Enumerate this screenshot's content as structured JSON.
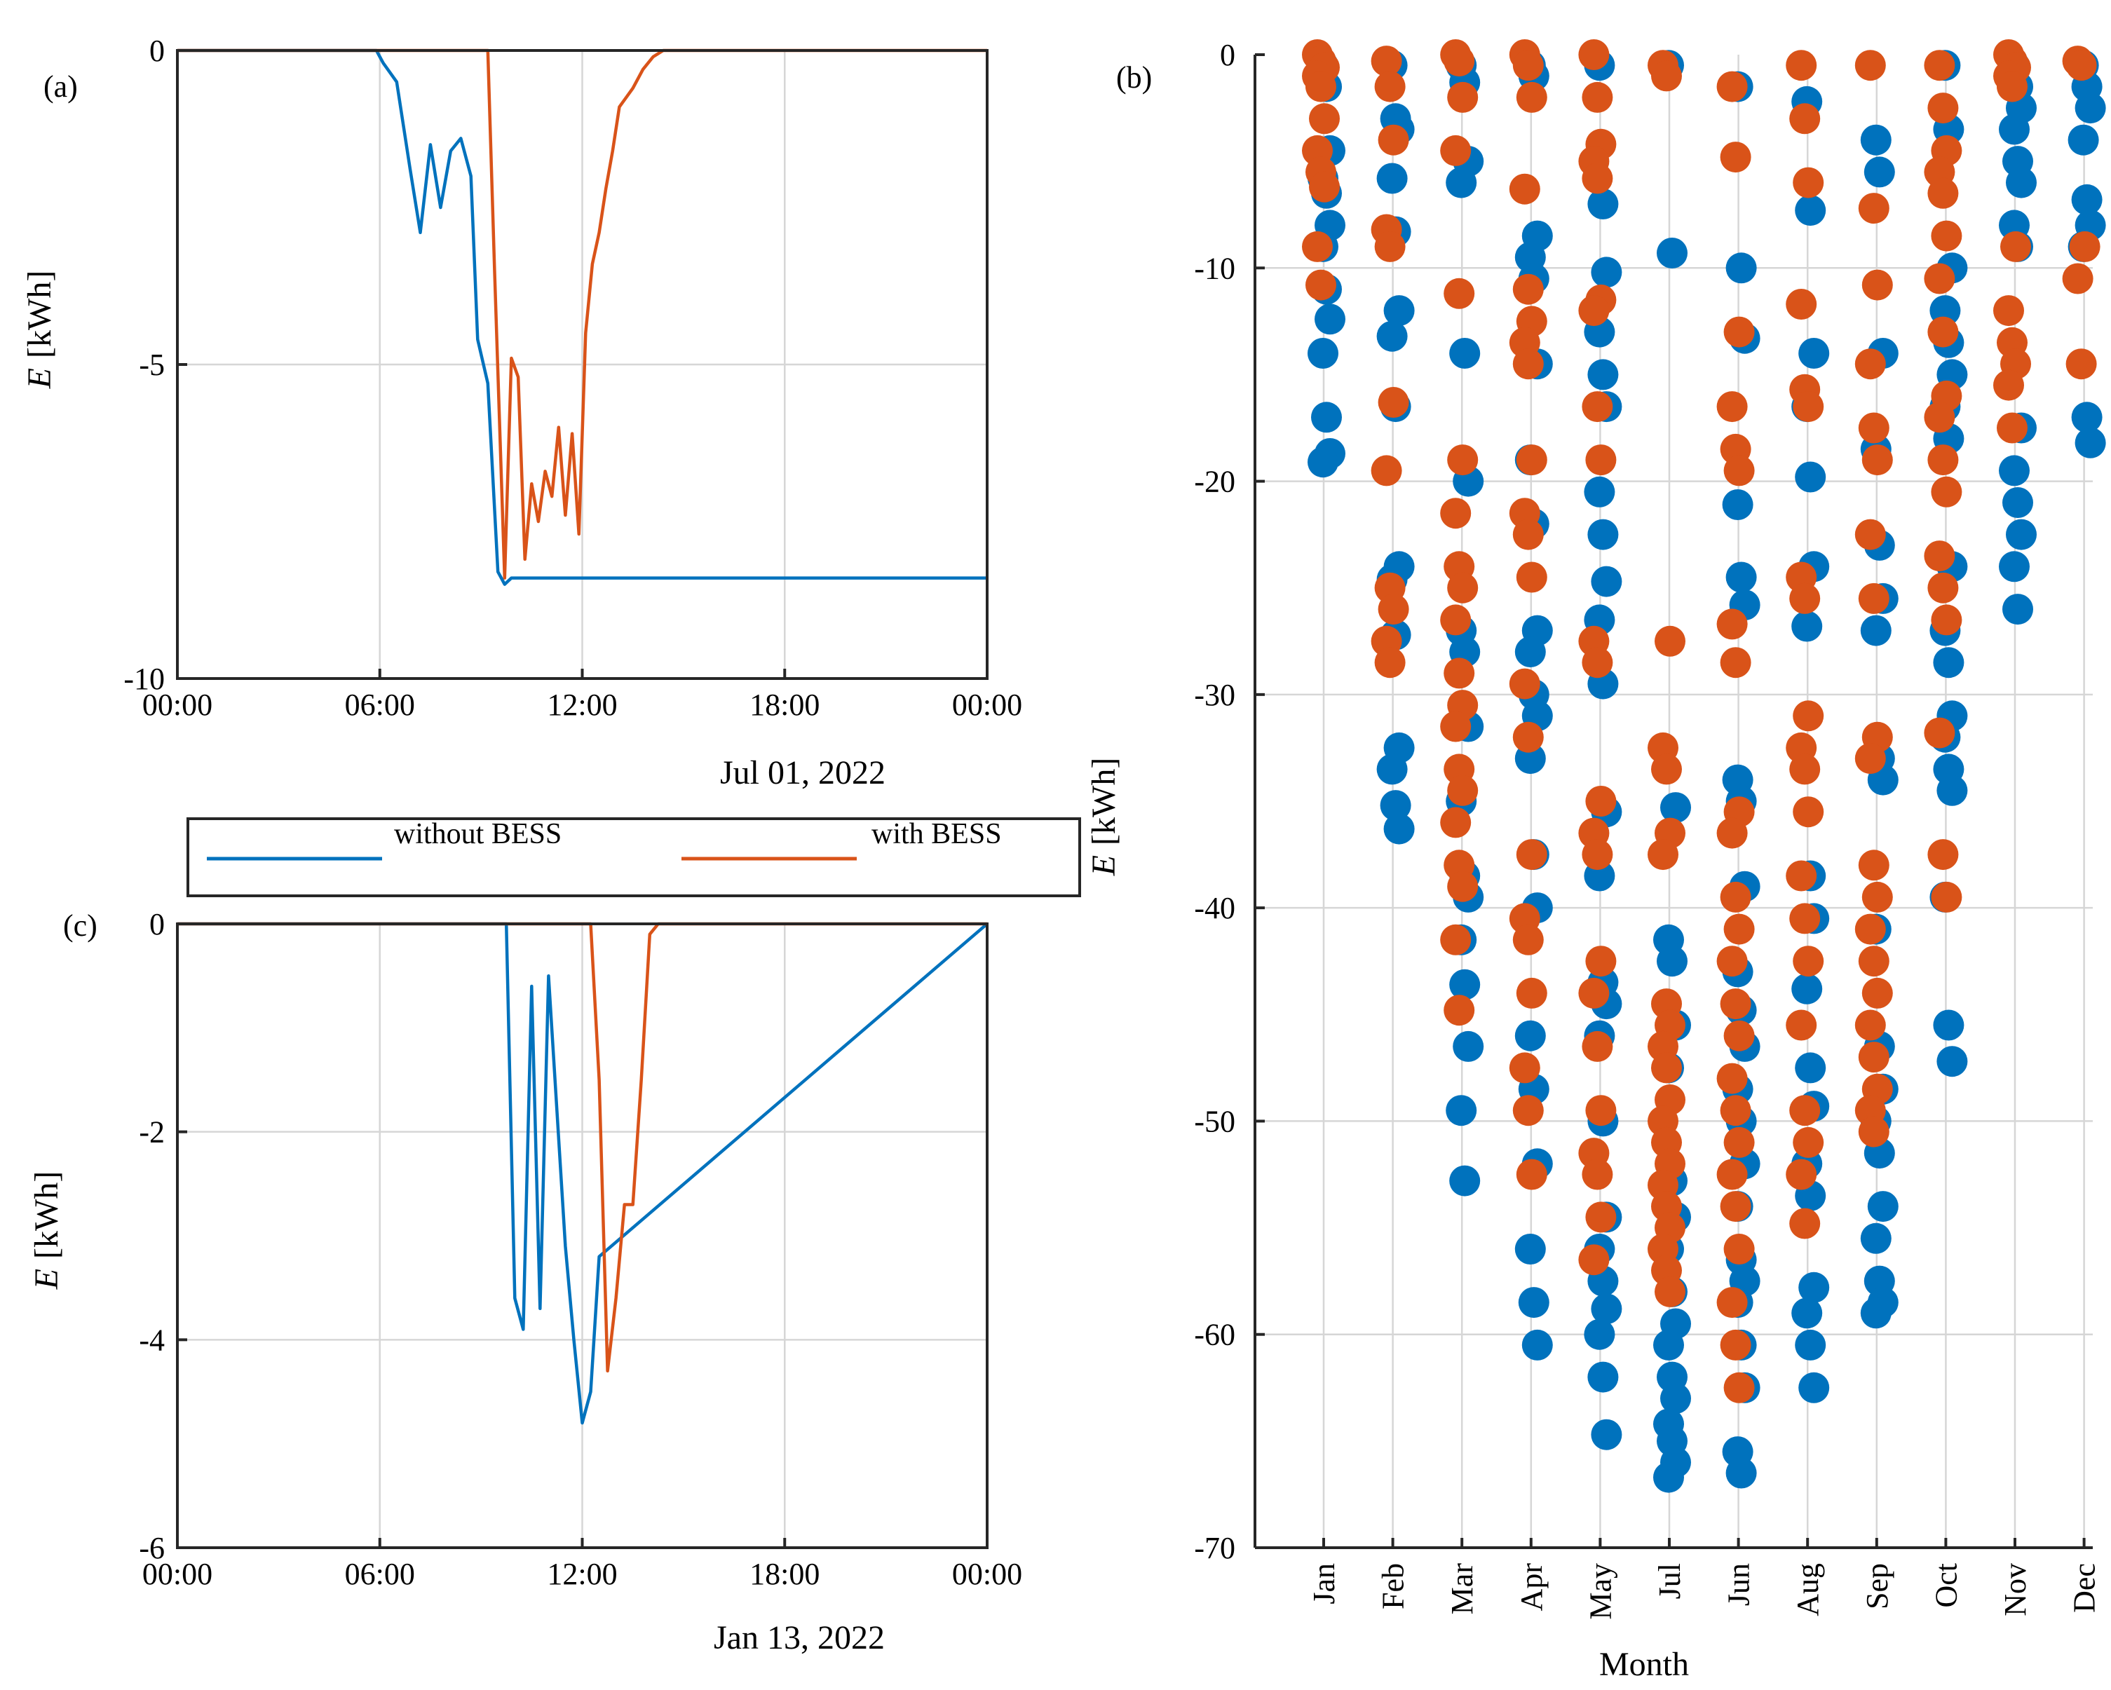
{
  "figure": {
    "series_names": [
      "without BESS",
      "with BESS"
    ],
    "colors": {
      "without": "#0072BD",
      "with": "#D95319"
    }
  },
  "chart_data": [
    {
      "id": "a",
      "type": "line",
      "panel_label": "(a)",
      "date_label": "Jul 01, 2022",
      "ylabel_symbol": "E",
      "ylabel_unit": "[kWh]",
      "xlim": [
        0,
        24
      ],
      "ylim": [
        -10,
        0
      ],
      "yticks": [
        0,
        -5,
        -10
      ],
      "ytick_labels": [
        "0",
        "-5",
        "-10"
      ],
      "xticks": [
        0,
        6,
        12,
        18,
        24
      ],
      "xtick_labels": [
        "00:00",
        "06:00",
        "12:00",
        "18:00",
        "00:00"
      ],
      "series": [
        {
          "name": "without BESS",
          "x": [
            0,
            5.9,
            6.1,
            6.5,
            6.9,
            7.2,
            7.5,
            7.8,
            8.1,
            8.4,
            8.7,
            8.9,
            9.2,
            9.5,
            9.7,
            9.9,
            24
          ],
          "y": [
            0,
            0,
            -0.2,
            -0.5,
            -1.9,
            -2.9,
            -1.5,
            -2.5,
            -1.6,
            -1.4,
            -2.0,
            -4.6,
            -5.3,
            -8.3,
            -8.5,
            -8.4,
            -8.4
          ]
        },
        {
          "name": "with BESS",
          "x": [
            0,
            9.2,
            9.4,
            9.7,
            9.9,
            10.1,
            10.3,
            10.5,
            10.7,
            10.9,
            11.1,
            11.3,
            11.5,
            11.7,
            11.9,
            12.1,
            12.3,
            12.5,
            12.7,
            12.9,
            13.1,
            13.5,
            13.8,
            14.1,
            14.4,
            14.6,
            24
          ],
          "y": [
            0,
            0,
            -3.5,
            -8.4,
            -4.9,
            -5.2,
            -8.1,
            -6.9,
            -7.5,
            -6.7,
            -7.1,
            -6.0,
            -7.4,
            -6.1,
            -7.7,
            -4.5,
            -3.4,
            -2.9,
            -2.2,
            -1.6,
            -0.9,
            -0.6,
            -0.3,
            -0.1,
            0,
            0,
            0
          ]
        }
      ]
    },
    {
      "id": "c",
      "type": "line",
      "panel_label": "(c)",
      "date_label": "Jan 13, 2022",
      "ylabel_symbol": "E",
      "ylabel_unit": "[kWh]",
      "xlim": [
        0,
        24
      ],
      "ylim": [
        -6,
        0
      ],
      "yticks": [
        0,
        -2,
        -4,
        -6
      ],
      "ytick_labels": [
        "0",
        "-2",
        "-4",
        "-6"
      ],
      "xticks": [
        0,
        6,
        12,
        18,
        24
      ],
      "xtick_labels": [
        "00:00",
        "06:00",
        "12:00",
        "18:00",
        "00:00"
      ],
      "series": [
        {
          "name": "without BESS",
          "x": [
            0,
            9.75,
            10.0,
            10.25,
            10.5,
            10.75,
            11.0,
            11.25,
            11.5,
            11.75,
            12.0,
            12.25,
            12.5,
            24
          ],
          "y": [
            0,
            0,
            -3.6,
            -3.9,
            -0.6,
            -3.7,
            -0.5,
            -1.8,
            -3.1,
            -4.0,
            -4.8,
            -4.5,
            -3.2,
            0
          ]
        },
        {
          "name": "with BESS",
          "x": [
            0,
            12.25,
            12.5,
            12.75,
            13.0,
            13.25,
            13.5,
            13.75,
            14.0,
            14.25,
            14.5,
            24
          ],
          "y": [
            0,
            0,
            -1.5,
            -4.3,
            -3.6,
            -2.7,
            -2.7,
            -1.5,
            -0.1,
            0,
            0,
            0
          ]
        }
      ]
    },
    {
      "id": "b",
      "type": "scatter",
      "panel_label": "(b)",
      "xlabel": "Month",
      "ylabel_symbol": "E",
      "ylabel_unit": "[kWh]",
      "ylim": [
        -70,
        0
      ],
      "yticks": [
        0,
        -10,
        -20,
        -30,
        -40,
        -50,
        -60,
        -70
      ],
      "ytick_labels": [
        "0",
        "-10",
        "-20",
        "-30",
        "-40",
        "-50",
        "-60",
        "-70"
      ],
      "categories": [
        "Jan",
        "Feb",
        "Mar",
        "Apr",
        "May",
        "Jul",
        "Jun",
        "Aug",
        "Sep",
        "Oct",
        "Nov",
        "Dec"
      ],
      "series": [
        {
          "name": "without BESS",
          "values": [
            [
              -0.5,
              -1.5,
              -4.5,
              -5.8,
              -6.5,
              -8.0,
              -9.0,
              -11.0,
              -12.4,
              -14.0,
              -17.0,
              -18.7,
              -19.1
            ],
            [
              -0.5,
              -3.0,
              -3.5,
              -5.8,
              -8.3,
              -12.0,
              -13.2,
              -16.5,
              -24.0,
              -24.6,
              -27.2,
              -32.5,
              -33.5,
              -35.2,
              -36.3
            ],
            [
              -0.5,
              -1.3,
              -5.0,
              -6.0,
              -14.0,
              -20.0,
              -27.0,
              -28.0,
              -31.5,
              -35.0,
              -38.5,
              -39.5,
              -41.5,
              -43.6,
              -46.5,
              -49.5,
              -52.8
            ],
            [
              -0.5,
              -1.0,
              -8.5,
              -9.5,
              -10.5,
              -14.5,
              -19.0,
              -22.0,
              -27.0,
              -28.0,
              -30.0,
              -31.0,
              -33.0,
              -37.5,
              -40.0,
              -46.0,
              -48.5,
              -52.0,
              -56.0,
              -58.5,
              -60.5
            ],
            [
              -0.5,
              -7.0,
              -10.2,
              -13.0,
              -15.0,
              -16.5,
              -20.5,
              -22.5,
              -24.7,
              -26.5,
              -29.5,
              -35.5,
              -38.5,
              -43.5,
              -44.5,
              -46.0,
              -50.0,
              -54.5,
              -56.0,
              -57.5,
              -58.8,
              -60.0,
              -62.0,
              -64.7
            ],
            [
              -0.5,
              -9.3,
              -35.3,
              -41.5,
              -42.5,
              -45.5,
              -47.5,
              -52.8,
              -54.5,
              -56.0,
              -58.0,
              -59.5,
              -60.5,
              -62.0,
              -63.0,
              -64.2,
              -65.0,
              -66.0,
              -66.7
            ],
            [
              -1.5,
              -10.0,
              -13.3,
              -21.1,
              -24.5,
              -25.8,
              -34.0,
              -35.0,
              -39.0,
              -43.0,
              -44.8,
              -46.5,
              -48.5,
              -50.0,
              -52.0,
              -54.0,
              -56.5,
              -57.5,
              -58.5,
              -60.5,
              -62.5,
              -65.5,
              -66.5
            ],
            [
              -2.2,
              -7.3,
              -14.0,
              -16.5,
              -19.8,
              -24.0,
              -26.8,
              -38.5,
              -40.5,
              -43.8,
              -47.5,
              -49.3,
              -52.0,
              -53.5,
              -57.8,
              -59.0,
              -60.5,
              -62.5
            ],
            [
              -4.0,
              -5.5,
              -14.0,
              -18.5,
              -23.0,
              -25.5,
              -27.0,
              -33.0,
              -34.0,
              -41.0,
              -46.5,
              -48.5,
              -50.0,
              -51.5,
              -54.0,
              -55.5,
              -57.5,
              -58.5,
              -59.0
            ],
            [
              -0.5,
              -3.5,
              -10.0,
              -12.0,
              -13.5,
              -15.0,
              -16.5,
              -18.0,
              -24.0,
              -27.0,
              -28.5,
              -31.0,
              -32.0,
              -33.5,
              -34.5,
              -39.5,
              -45.5,
              -47.2
            ],
            [
              -0.5,
              -1.5,
              -2.5,
              -3.5,
              -5.0,
              -6.0,
              -8.0,
              -9.0,
              -17.5,
              -19.5,
              -21.0,
              -22.5,
              -24.0,
              -26.0
            ],
            [
              -0.5,
              -1.5,
              -2.5,
              -4.0,
              -6.8,
              -8.0,
              -9.0,
              -17.0,
              -18.2
            ]
          ]
        },
        {
          "name": "with BESS",
          "values": [
            [
              0,
              -0.3,
              -0.6,
              -1.0,
              -1.5,
              -3.0,
              -4.5,
              -5.5,
              -6.2,
              -9.0,
              -10.8
            ],
            [
              -0.3,
              -1.5,
              -4.0,
              -8.2,
              -9.0,
              -16.3,
              -19.5,
              -25.0,
              -26.0,
              -27.5,
              -28.5
            ],
            [
              0,
              -0.3,
              -2.0,
              -4.5,
              -11.2,
              -19.0,
              -21.5,
              -24.0,
              -25.0,
              -26.5,
              -29.0,
              -30.5,
              -31.5,
              -33.5,
              -34.5,
              -36.0,
              -38.0,
              -39.0,
              -41.5,
              -44.8
            ],
            [
              0,
              -0.5,
              -2.0,
              -6.3,
              -11.0,
              -12.5,
              -13.5,
              -14.5,
              -19.0,
              -21.5,
              -22.5,
              -24.5,
              -29.5,
              -32.0,
              -37.5,
              -40.5,
              -41.5,
              -44.0,
              -47.5,
              -49.5,
              -52.5
            ],
            [
              0,
              -2.0,
              -4.2,
              -5.0,
              -5.8,
              -11.5,
              -12.0,
              -16.5,
              -19.0,
              -27.5,
              -28.5,
              -35.0,
              -36.5,
              -37.5,
              -42.5,
              -44.0,
              -46.5,
              -49.5,
              -51.5,
              -52.5,
              -54.5,
              -56.5
            ],
            [
              -0.5,
              -1.0,
              -27.5,
              -32.5,
              -33.5,
              -36.5,
              -37.5,
              -44.5,
              -45.5,
              -46.5,
              -47.5,
              -49.0,
              -50.0,
              -51.0,
              -52.0,
              -53.0,
              -54.0,
              -55.0,
              -56.0,
              -57.0,
              -58.0
            ],
            [
              -1.5,
              -4.8,
              -13.0,
              -16.5,
              -18.5,
              -19.5,
              -26.7,
              -28.5,
              -35.5,
              -36.5,
              -39.5,
              -41.0,
              -42.5,
              -44.5,
              -46.0,
              -48.0,
              -49.5,
              -51.0,
              -52.5,
              -54.0,
              -56.0,
              -58.5,
              -60.5,
              -62.5
            ],
            [
              -0.5,
              -3.0,
              -6.0,
              -11.7,
              -15.7,
              -16.5,
              -24.5,
              -25.5,
              -31.0,
              -32.5,
              -33.5,
              -35.5,
              -38.5,
              -40.5,
              -42.5,
              -45.5,
              -49.5,
              -51.0,
              -52.5,
              -54.8
            ],
            [
              -0.5,
              -7.2,
              -10.8,
              -14.5,
              -17.5,
              -19.0,
              -22.5,
              -25.5,
              -32.0,
              -33.0,
              -38.0,
              -39.5,
              -41.0,
              -42.5,
              -44.0,
              -45.5,
              -47.0,
              -48.5,
              -49.5,
              -50.5
            ],
            [
              -0.5,
              -2.5,
              -4.5,
              -5.5,
              -6.5,
              -8.5,
              -10.5,
              -13.0,
              -16.0,
              -17.0,
              -19.0,
              -20.5,
              -23.5,
              -25.0,
              -26.5,
              -31.8,
              -37.5,
              -39.5
            ],
            [
              0,
              -0.3,
              -0.6,
              -1.0,
              -1.5,
              -9.0,
              -12.0,
              -13.5,
              -14.5,
              -15.5,
              -17.5
            ],
            [
              -0.3,
              -0.5,
              -9.0,
              -10.5,
              -14.5
            ]
          ]
        }
      ]
    }
  ]
}
